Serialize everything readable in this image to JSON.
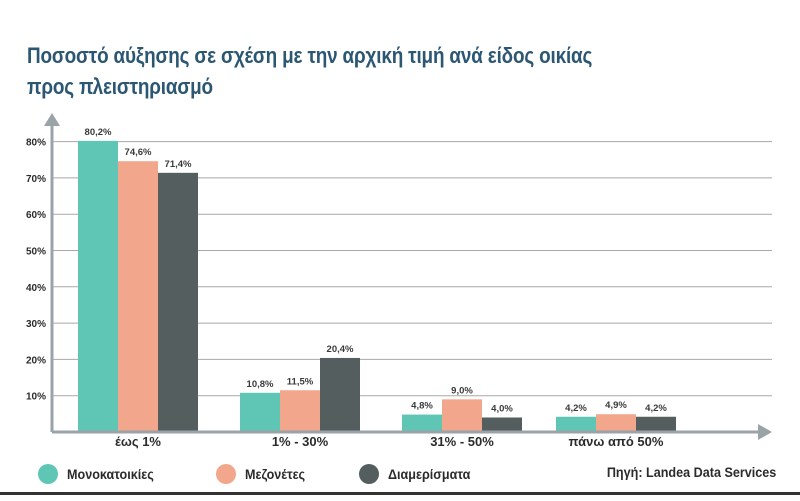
{
  "title": "Ποσοστό αύξησης σε σχέση με την αρχική τιμή ανά είδος οικίας προς πλειστηριασμό",
  "source": "Πηγή: Landea Data Services",
  "colors": {
    "title": "#2c5773",
    "grid": "#a8a8a8",
    "axis": "#9aa3a8"
  },
  "chart_data": {
    "type": "bar",
    "title": "Ποσοστό αύξησης σε σχέση με την αρχική τιμή ανά είδος οικίας προς πλειστηριασμό",
    "xlabel": "",
    "ylabel": "",
    "categories": [
      "έως 1%",
      "1% - 30%",
      "31% - 50%",
      "πάνω από 50%"
    ],
    "series": [
      {
        "name": "Μονοκατοικίες",
        "color": "#5fc6b5",
        "values": [
          80.2,
          10.8,
          4.8,
          4.2
        ],
        "labels": [
          "80,2%",
          "10,8%",
          "4,8%",
          "4,2%"
        ]
      },
      {
        "name": "Μεζονέτες",
        "color": "#f2a68c",
        "values": [
          74.6,
          11.5,
          9.0,
          4.9
        ],
        "labels": [
          "74,6%",
          "11,5%",
          "9,0%",
          "4,9%"
        ]
      },
      {
        "name": "Διαμερίσματα",
        "color": "#555e5e",
        "values": [
          71.4,
          20.4,
          4.0,
          4.2
        ],
        "labels": [
          "71,4%",
          "20,4%",
          "4,0%",
          "4,2%"
        ]
      }
    ],
    "yticks": [
      "10%",
      "20%",
      "30%",
      "40%",
      "50%",
      "60%",
      "70%",
      "80%"
    ],
    "ylim": [
      0,
      80
    ],
    "grid": true,
    "legend_position": "bottom-left"
  }
}
